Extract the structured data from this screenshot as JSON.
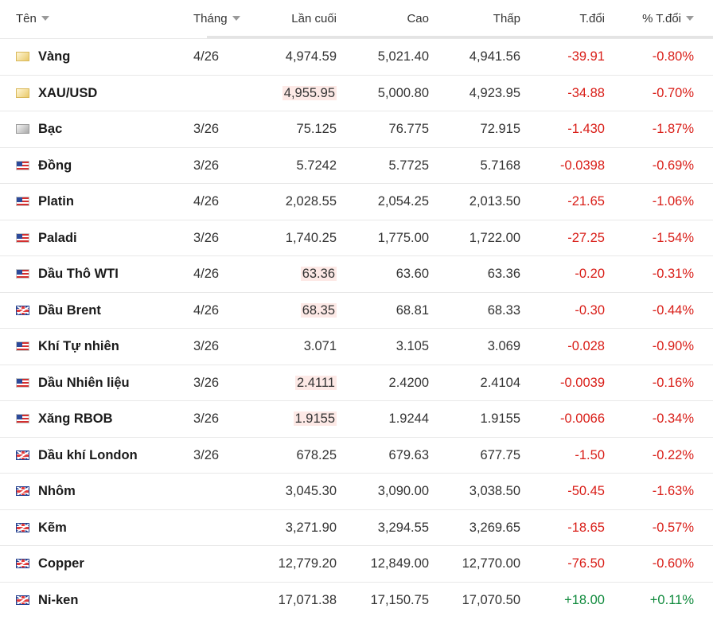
{
  "header": {
    "name": "Tên",
    "month": "Tháng",
    "last": "Lần cuối",
    "high": "Cao",
    "low": "Thấp",
    "change": "T.đổi",
    "change_pct": "% T.đổi"
  },
  "colors": {
    "negative": "#d91e18",
    "positive": "#0f8a3c",
    "highlight": "#fde9e6"
  },
  "rows": [
    {
      "flag": "gold-icon",
      "name": "Vàng",
      "month": "4/26",
      "last": "4,974.59",
      "high": "5,021.40",
      "low": "4,941.56",
      "change": "-39.91",
      "pct": "-0.80%",
      "dir": "neg",
      "hl": false
    },
    {
      "flag": "gold-icon",
      "name": "XAU/USD",
      "month": "",
      "last": "4,955.95",
      "high": "5,000.80",
      "low": "4,923.95",
      "change": "-34.88",
      "pct": "-0.70%",
      "dir": "neg",
      "hl": true
    },
    {
      "flag": "silver-icon",
      "name": "Bạc",
      "month": "3/26",
      "last": "75.125",
      "high": "76.775",
      "low": "72.915",
      "change": "-1.430",
      "pct": "-1.87%",
      "dir": "neg",
      "hl": false
    },
    {
      "flag": "us-flag-icon",
      "name": "Đồng",
      "month": "3/26",
      "last": "5.7242",
      "high": "5.7725",
      "low": "5.7168",
      "change": "-0.0398",
      "pct": "-0.69%",
      "dir": "neg",
      "hl": false
    },
    {
      "flag": "us-flag-icon",
      "name": "Platin",
      "month": "4/26",
      "last": "2,028.55",
      "high": "2,054.25",
      "low": "2,013.50",
      "change": "-21.65",
      "pct": "-1.06%",
      "dir": "neg",
      "hl": false
    },
    {
      "flag": "us-flag-icon",
      "name": "Paladi",
      "month": "3/26",
      "last": "1,740.25",
      "high": "1,775.00",
      "low": "1,722.00",
      "change": "-27.25",
      "pct": "-1.54%",
      "dir": "neg",
      "hl": false
    },
    {
      "flag": "us-flag-icon",
      "name": "Dầu Thô WTI",
      "month": "4/26",
      "last": "63.36",
      "high": "63.60",
      "low": "63.36",
      "change": "-0.20",
      "pct": "-0.31%",
      "dir": "neg",
      "hl": true
    },
    {
      "flag": "uk-flag-icon",
      "name": "Dầu Brent",
      "month": "4/26",
      "last": "68.35",
      "high": "68.81",
      "low": "68.33",
      "change": "-0.30",
      "pct": "-0.44%",
      "dir": "neg",
      "hl": true
    },
    {
      "flag": "us-flag-icon",
      "name": "Khí Tự nhiên",
      "month": "3/26",
      "last": "3.071",
      "high": "3.105",
      "low": "3.069",
      "change": "-0.028",
      "pct": "-0.90%",
      "dir": "neg",
      "hl": false
    },
    {
      "flag": "us-flag-icon",
      "name": "Dầu Nhiên liệu",
      "month": "3/26",
      "last": "2.4111",
      "high": "2.4200",
      "low": "2.4104",
      "change": "-0.0039",
      "pct": "-0.16%",
      "dir": "neg",
      "hl": true
    },
    {
      "flag": "us-flag-icon",
      "name": "Xăng RBOB",
      "month": "3/26",
      "last": "1.9155",
      "high": "1.9244",
      "low": "1.9155",
      "change": "-0.0066",
      "pct": "-0.34%",
      "dir": "neg",
      "hl": true
    },
    {
      "flag": "uk-flag-icon",
      "name": "Dầu khí London",
      "month": "3/26",
      "last": "678.25",
      "high": "679.63",
      "low": "677.75",
      "change": "-1.50",
      "pct": "-0.22%",
      "dir": "neg",
      "hl": false
    },
    {
      "flag": "uk-flag-icon",
      "name": "Nhôm",
      "month": "",
      "last": "3,045.30",
      "high": "3,090.00",
      "low": "3,038.50",
      "change": "-50.45",
      "pct": "-1.63%",
      "dir": "neg",
      "hl": false
    },
    {
      "flag": "uk-flag-icon",
      "name": "Kẽm",
      "month": "",
      "last": "3,271.90",
      "high": "3,294.55",
      "low": "3,269.65",
      "change": "-18.65",
      "pct": "-0.57%",
      "dir": "neg",
      "hl": false
    },
    {
      "flag": "uk-flag-icon",
      "name": "Copper",
      "month": "",
      "last": "12,779.20",
      "high": "12,849.00",
      "low": "12,770.00",
      "change": "-76.50",
      "pct": "-0.60%",
      "dir": "neg",
      "hl": false
    },
    {
      "flag": "uk-flag-icon",
      "name": "Ni-ken",
      "month": "",
      "last": "17,071.38",
      "high": "17,150.75",
      "low": "17,070.50",
      "change": "+18.00",
      "pct": "+0.11%",
      "dir": "pos",
      "hl": false
    }
  ]
}
